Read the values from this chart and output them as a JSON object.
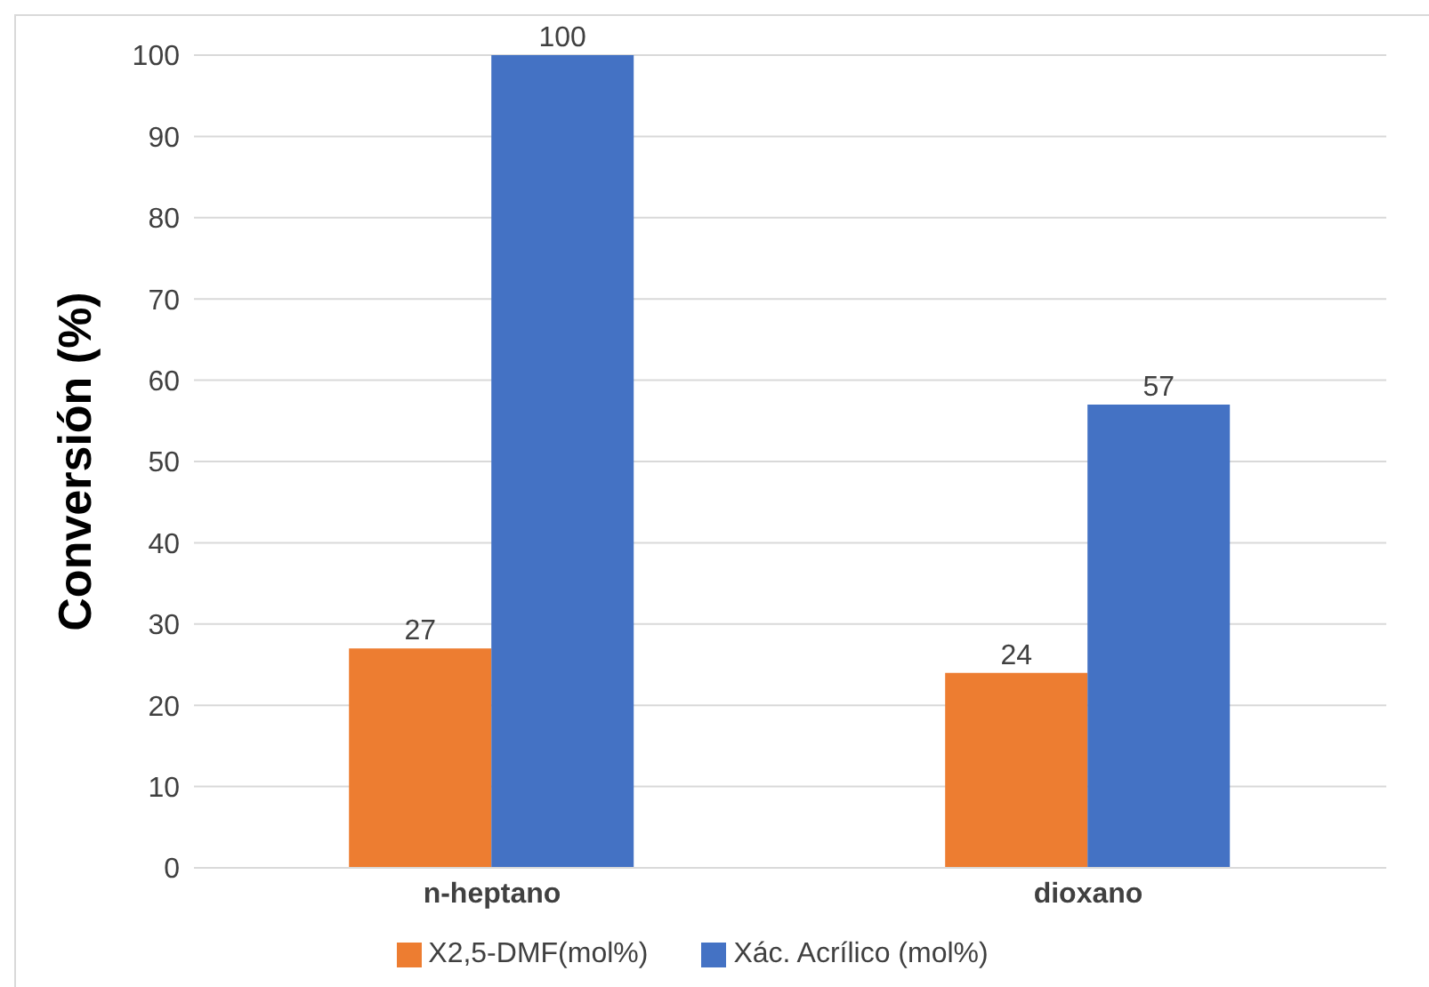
{
  "chart_data": {
    "type": "bar",
    "ylabel": "Conversión (%)",
    "categories": [
      "n-heptano",
      "dioxano"
    ],
    "series": [
      {
        "name": "X2,5-DMF(mol%)",
        "color": "#ed7d31",
        "values": [
          27,
          24
        ]
      },
      {
        "name": "Xác. Acrílico (mol%)",
        "color": "#4472c4",
        "values": [
          100,
          57
        ]
      }
    ],
    "ylim": [
      0,
      100
    ],
    "yticks": [
      0,
      10,
      20,
      30,
      40,
      50,
      60,
      70,
      80,
      90,
      100
    ],
    "grid": "y",
    "legend": "bottom",
    "data_labels": true
  }
}
